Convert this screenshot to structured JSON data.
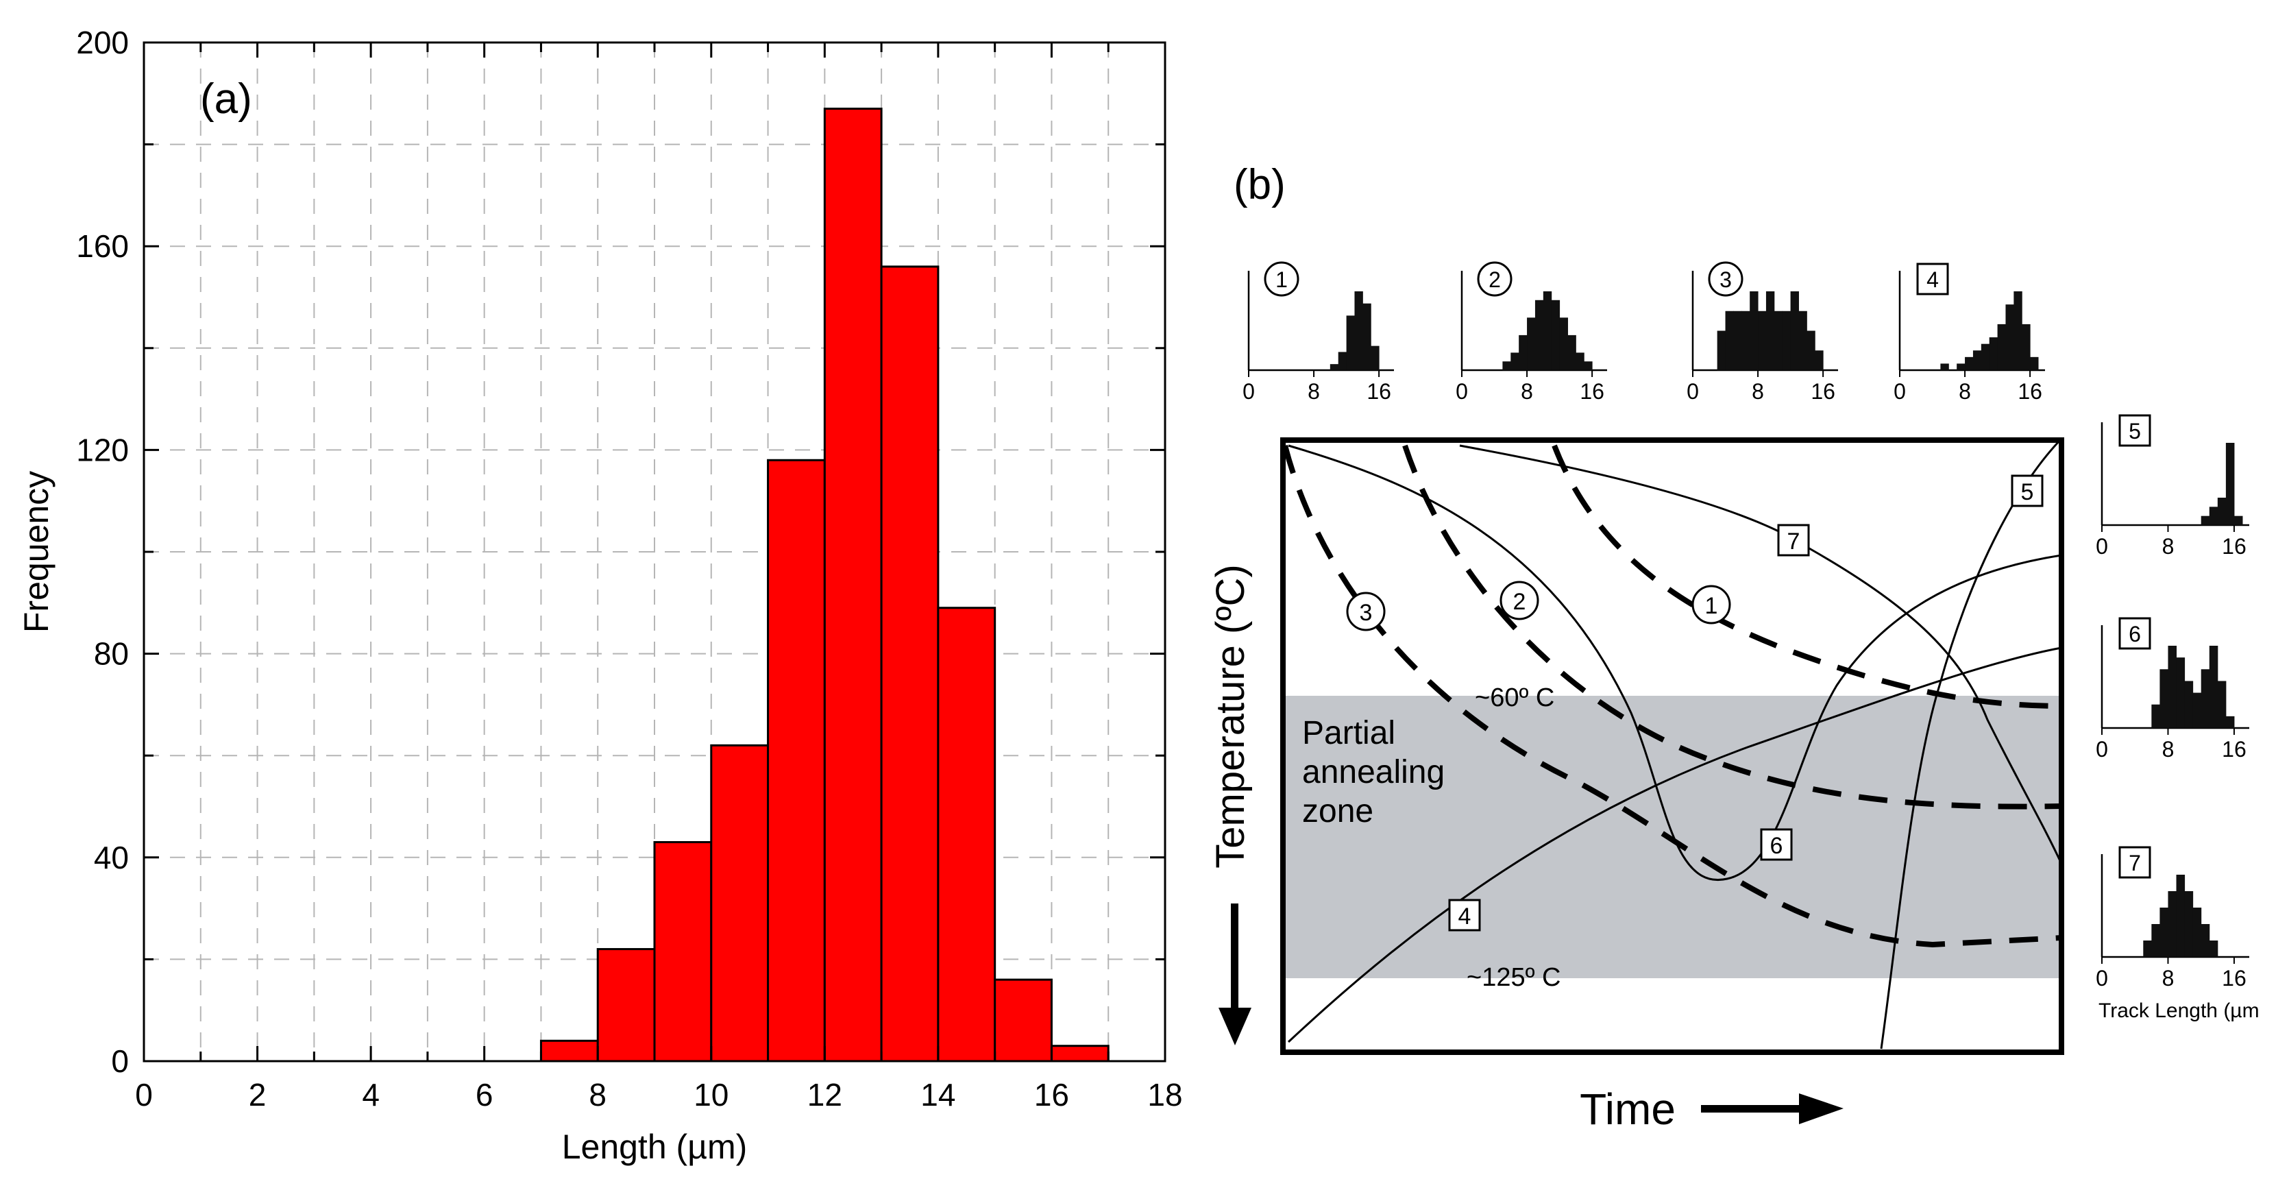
{
  "chart_data": [
    {
      "type": "bar",
      "panel_label": "(a)",
      "xlabel": "Length (µm)",
      "ylabel": "Frequency",
      "xlim": [
        0,
        18
      ],
      "ylim": [
        0,
        200
      ],
      "grid": true,
      "x_ticks": [
        "0",
        "2",
        "4",
        "6",
        "8",
        "10",
        "12",
        "14",
        "16",
        "18"
      ],
      "y_ticks": [
        "0",
        "40",
        "80",
        "120",
        "160",
        "200"
      ],
      "bin_edges": [
        7,
        8,
        9,
        10,
        11,
        12,
        13,
        14,
        15,
        16,
        17
      ],
      "values": [
        4,
        22,
        43,
        62,
        118,
        187,
        156,
        89,
        16,
        3
      ],
      "bar_color": "#ff0000"
    },
    {
      "type": "diagram",
      "panel_label": "(b)",
      "xlabel": "Time",
      "ylabel": "Temperature (ºC)",
      "zone_label_lines": [
        "Partial",
        "annealing",
        "zone"
      ],
      "temp_top_label": "~60º C",
      "temp_bottom_label": "~125º C",
      "zone_color": "#c3c6cb",
      "isotherm_labels": [
        "1",
        "2",
        "3"
      ],
      "path_labels": [
        "4",
        "5",
        "6",
        "7"
      ],
      "mini_histograms": [
        {
          "id": "1",
          "marker": "circle",
          "ticks": [
            "0",
            "8",
            "16"
          ],
          "bars": [
            0,
            0,
            0,
            0,
            0,
            0,
            0,
            0,
            0,
            0,
            1,
            3,
            9,
            13,
            11,
            4,
            0
          ]
        },
        {
          "id": "2",
          "marker": "circle",
          "ticks": [
            "0",
            "8",
            "16"
          ],
          "bars": [
            0,
            0,
            0,
            0,
            0,
            1,
            2,
            4,
            6,
            8,
            9,
            8,
            6,
            4,
            2,
            1,
            0
          ]
        },
        {
          "id": "3",
          "marker": "circle",
          "ticks": [
            "0",
            "8",
            "16"
          ],
          "bars": [
            0,
            0,
            0,
            2,
            3,
            3,
            3,
            4,
            3,
            4,
            3,
            3,
            4,
            3,
            2,
            1,
            0
          ]
        },
        {
          "id": "4",
          "marker": "square",
          "ticks": [
            "0",
            "8",
            "16"
          ],
          "bars": [
            0,
            0,
            0,
            0,
            0,
            1,
            0,
            1,
            2,
            3,
            4,
            5,
            7,
            10,
            12,
            7,
            2
          ]
        },
        {
          "id": "5",
          "marker": "square",
          "ticks": [
            "0",
            "8",
            "16"
          ],
          "bars": [
            0,
            0,
            0,
            0,
            0,
            0,
            0,
            0,
            0,
            0,
            0,
            0,
            1,
            2,
            3,
            9,
            1
          ]
        },
        {
          "id": "6",
          "marker": "square",
          "ticks": [
            "0",
            "8",
            "16"
          ],
          "bars": [
            0,
            0,
            0,
            0,
            0,
            0,
            2,
            5,
            7,
            6,
            4,
            3,
            5,
            7,
            4,
            1,
            0
          ]
        },
        {
          "id": "7",
          "marker": "square",
          "ticks": [
            "0",
            "8",
            "16"
          ],
          "bars": [
            0,
            0,
            0,
            0,
            0,
            1,
            2,
            3,
            4,
            5,
            4,
            3,
            2,
            1,
            0,
            0,
            0
          ]
        }
      ],
      "track_length_label": "Track Length (µm"
    }
  ]
}
